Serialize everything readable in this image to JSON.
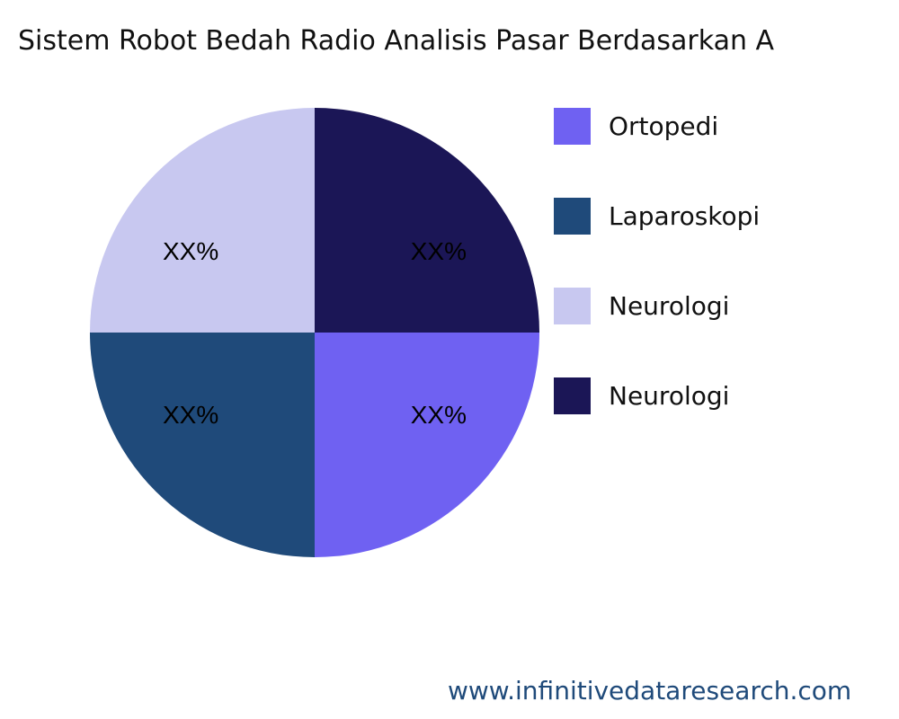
{
  "chart_data": {
    "type": "pie",
    "title": "Sistem Robot Bedah Radio Analisis Pasar Berdasarkan A",
    "slices": [
      {
        "name": "Ortopedi",
        "value": 25,
        "label": "XX%",
        "color": "#6f61f2"
      },
      {
        "name": "Laparoskopi",
        "value": 25,
        "label": "XX%",
        "color": "#1f4a7a"
      },
      {
        "name": "Neurologi",
        "value": 25,
        "label": "XX%",
        "color": "#c8c8f0"
      },
      {
        "name": "Neurologi",
        "value": 25,
        "label": "XX%",
        "color": "#1b1656"
      }
    ],
    "direction": "clockwise",
    "legend_position": "right"
  },
  "footer": "www.infinitivedataresearch.com"
}
